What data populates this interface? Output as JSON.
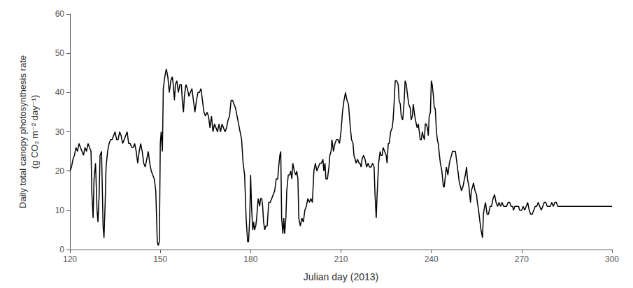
{
  "chart_data": {
    "type": "line",
    "xlabel": "Julian day (2013)",
    "ylabel": "Daily total canopy photosynthesis rate\n(g CO₂ m⁻² day⁻¹)",
    "xlim": [
      120,
      300
    ],
    "ylim": [
      0,
      60
    ],
    "xticks": [
      120,
      150,
      180,
      210,
      240,
      270,
      300
    ],
    "yticks": [
      0,
      10,
      20,
      30,
      40,
      50,
      60
    ],
    "color": "#000000",
    "grid": false,
    "x": [
      120.0,
      120.5,
      121.0,
      121.5,
      122.0,
      122.5,
      123.0,
      123.5,
      124.0,
      124.5,
      125.0,
      125.5,
      126.0,
      126.5,
      127.0,
      127.3,
      127.7,
      128.0,
      128.5,
      129.0,
      129.3,
      129.7,
      130.0,
      130.5,
      131.0,
      131.3,
      131.7,
      132.0,
      132.5,
      133.0,
      133.5,
      134.0,
      134.5,
      135.0,
      135.5,
      136.0,
      136.5,
      137.0,
      137.5,
      138.0,
      138.5,
      139.0,
      139.5,
      140.0,
      140.5,
      141.0,
      141.5,
      142.0,
      142.5,
      143.0,
      143.5,
      144.0,
      144.5,
      145.0,
      145.5,
      146.0,
      146.5,
      147.0,
      147.5,
      148.0,
      148.5,
      149.0,
      149.3,
      149.7,
      150.0,
      150.3,
      150.7,
      151.0,
      151.5,
      152.0,
      152.5,
      153.0,
      153.5,
      154.0,
      154.3,
      154.7,
      155.0,
      155.5,
      156.0,
      156.5,
      157.0,
      157.3,
      157.7,
      158.0,
      158.5,
      159.0,
      159.5,
      160.0,
      160.5,
      161.0,
      161.5,
      162.0,
      162.5,
      163.0,
      163.5,
      164.0,
      164.5,
      165.0,
      165.5,
      166.0,
      166.5,
      167.0,
      167.5,
      168.0,
      168.5,
      169.0,
      169.5,
      170.0,
      170.5,
      171.0,
      171.5,
      172.0,
      172.5,
      173.0,
      173.5,
      174.0,
      174.5,
      175.0,
      175.5,
      176.0,
      176.5,
      177.0,
      177.5,
      178.0,
      178.5,
      179.0,
      179.3,
      179.7,
      180.0,
      180.3,
      180.7,
      181.0,
      181.3,
      181.7,
      182.0,
      182.5,
      183.0,
      183.3,
      183.7,
      184.0,
      184.3,
      184.7,
      185.0,
      185.5,
      186.0,
      186.5,
      187.0,
      187.5,
      188.0,
      188.5,
      189.0,
      189.3,
      189.7,
      190.0,
      190.3,
      190.7,
      191.0,
      191.3,
      191.7,
      192.0,
      192.5,
      193.0,
      193.3,
      193.7,
      194.0,
      194.5,
      195.0,
      195.3,
      195.7,
      196.0,
      196.5,
      197.0,
      197.5,
      198.0,
      198.5,
      199.0,
      199.5,
      200.0,
      200.5,
      201.0,
      201.5,
      202.0,
      202.5,
      203.0,
      203.5,
      204.0,
      204.3,
      204.7,
      205.0,
      205.5,
      206.0,
      206.3,
      206.7,
      207.0,
      207.5,
      208.0,
      208.5,
      209.0,
      209.5,
      210.0,
      210.5,
      211.0,
      211.5,
      212.0,
      212.5,
      213.0,
      213.5,
      214.0,
      214.3,
      214.7,
      215.0,
      215.5,
      216.0,
      216.3,
      216.7,
      217.0,
      217.5,
      218.0,
      218.5,
      219.0,
      219.5,
      220.0,
      220.5,
      221.0,
      221.3,
      221.7,
      222.0,
      222.5,
      223.0,
      223.3,
      223.7,
      224.0,
      224.5,
      225.0,
      225.3,
      225.7,
      226.0,
      226.5,
      227.0,
      227.3,
      227.7,
      228.0,
      228.5,
      229.0,
      229.3,
      229.7,
      230.0,
      230.5,
      231.0,
      231.3,
      231.7,
      232.0,
      232.5,
      233.0,
      233.3,
      233.7,
      234.0,
      234.5,
      235.0,
      235.3,
      235.7,
      236.0,
      236.3,
      236.7,
      237.0,
      237.3,
      237.7,
      238.0,
      238.3,
      238.7,
      239.0,
      239.3,
      239.7,
      240.0,
      240.3,
      240.7,
      241.0,
      241.3,
      241.7,
      242.0,
      242.3,
      242.7,
      243.0,
      243.5,
      244.0,
      244.3,
      244.7,
      245.0,
      245.5,
      246.0,
      246.3,
      246.7,
      247.0,
      247.5,
      248.0,
      248.5,
      249.0,
      249.3,
      249.7,
      250.0,
      250.5,
      251.0,
      251.3,
      251.7,
      252.0,
      252.5,
      253.0,
      253.3,
      253.7,
      254.0,
      254.5,
      255.0,
      255.3,
      255.7,
      256.0,
      256.5,
      257.0,
      257.3,
      257.7,
      258.0,
      258.5,
      259.0,
      259.5,
      260.0,
      260.5,
      261.0,
      261.5,
      262.0,
      262.5,
      263.0,
      263.5,
      264.0,
      264.5,
      265.0,
      265.5,
      266.0,
      266.5,
      267.0,
      267.3,
      267.7,
      268.0,
      268.5,
      269.0,
      269.3,
      269.7,
      270.0,
      270.5,
      271.0,
      271.5,
      272.0,
      272.5,
      273.0,
      273.5,
      274.0,
      274.5,
      275.0,
      275.5,
      276.0,
      276.5,
      277.0,
      277.5,
      278.0,
      278.5,
      279.0,
      279.5,
      280.0,
      280.5,
      281.0,
      281.5,
      282.0,
      282.5,
      283.0,
      283.5,
      284.0,
      284.5,
      285.0,
      285.5,
      286.0,
      286.5,
      287.0,
      287.5,
      288.0,
      288.5,
      289.0,
      289.5,
      290.0,
      290.5,
      291.0,
      291.5,
      292.0,
      292.5,
      293.0,
      293.5,
      294.0,
      294.5,
      295.0,
      295.5,
      296.0,
      296.5,
      297.0,
      297.5,
      298.0,
      298.5,
      299.0,
      299.5,
      300.0
    ],
    "values": [
      20,
      21,
      23,
      24,
      26,
      25,
      27,
      26,
      25,
      24,
      26,
      25,
      27,
      26,
      25,
      14,
      8,
      18,
      22,
      10,
      7,
      14,
      24,
      25,
      6,
      3,
      12,
      21,
      25,
      27,
      28,
      28,
      29,
      30,
      28,
      28,
      30,
      29,
      27,
      28,
      29,
      30,
      27,
      27,
      26,
      26,
      27,
      25,
      22,
      25,
      27,
      25,
      22,
      21,
      23,
      25,
      22,
      20,
      19,
      18,
      15,
      2,
      1,
      2,
      27,
      30,
      25,
      41,
      44,
      46,
      44,
      40,
      43,
      44,
      42,
      38,
      42,
      43,
      40,
      42,
      42,
      38,
      35,
      39,
      42,
      41,
      39,
      40,
      41,
      38,
      35,
      38,
      40,
      40,
      41,
      38,
      35,
      34,
      35,
      34,
      31,
      34,
      30,
      32,
      31,
      30,
      32,
      30,
      32,
      31,
      30,
      31,
      33,
      34,
      38,
      38,
      37,
      36,
      34,
      32,
      30,
      28,
      22,
      19,
      8,
      2,
      2,
      8,
      19,
      11,
      5,
      7,
      5,
      6,
      8,
      13,
      11,
      13,
      13,
      11,
      7,
      5,
      6,
      6,
      12,
      12,
      13,
      14,
      15,
      18,
      18,
      21,
      24,
      25,
      8,
      4,
      8,
      4,
      8,
      15,
      19,
      19,
      20,
      18,
      22,
      20,
      19,
      20,
      18,
      8,
      6,
      8,
      7,
      10,
      11,
      13,
      12,
      13,
      12,
      20,
      22,
      20,
      21,
      22,
      22,
      23,
      20,
      22,
      18,
      18,
      21,
      24,
      25,
      28,
      25,
      27,
      28,
      28,
      27,
      30,
      35,
      38,
      40,
      38,
      37,
      32,
      28,
      27,
      24,
      23,
      22,
      23,
      22,
      22,
      21,
      23,
      24,
      23,
      21,
      22,
      21,
      21,
      22,
      21,
      14,
      8,
      14,
      22,
      25,
      24,
      24,
      26,
      25,
      24,
      22,
      27,
      27,
      30,
      31,
      33,
      38,
      43,
      43,
      42,
      38,
      37,
      34,
      33,
      38,
      43,
      42,
      40,
      37,
      36,
      33,
      34,
      37,
      34,
      32,
      31,
      32,
      30,
      28,
      28,
      30,
      29,
      28,
      32,
      32,
      31,
      29,
      34,
      35,
      43,
      42,
      39,
      36,
      36,
      30,
      28,
      27,
      24,
      22,
      20,
      16,
      16,
      19,
      21,
      19,
      22,
      23,
      24,
      25,
      25,
      25,
      22,
      19,
      17,
      16,
      15,
      16,
      18,
      19,
      21,
      18,
      16,
      12,
      15,
      16,
      17,
      15,
      14,
      12,
      10,
      8,
      5,
      3,
      9,
      11,
      12,
      9,
      9,
      11,
      11,
      13,
      14,
      12,
      11,
      12,
      11,
      12,
      11,
      11,
      11,
      12,
      12,
      11,
      11,
      10,
      11,
      11,
      11,
      11,
      10,
      10,
      10,
      11,
      10,
      11,
      12,
      10,
      9,
      9,
      10,
      11,
      11,
      12,
      11,
      10,
      11,
      12,
      12,
      11,
      11,
      11,
      12,
      11,
      12,
      12,
      11,
      11,
      11,
      11,
      11,
      11,
      11,
      11,
      11,
      11,
      11,
      11,
      11,
      11,
      11,
      11,
      11,
      11,
      11,
      11,
      11,
      11,
      11,
      11,
      11,
      11,
      11,
      11,
      11,
      11,
      11,
      11,
      11,
      11,
      11,
      11,
      11
    ]
  }
}
